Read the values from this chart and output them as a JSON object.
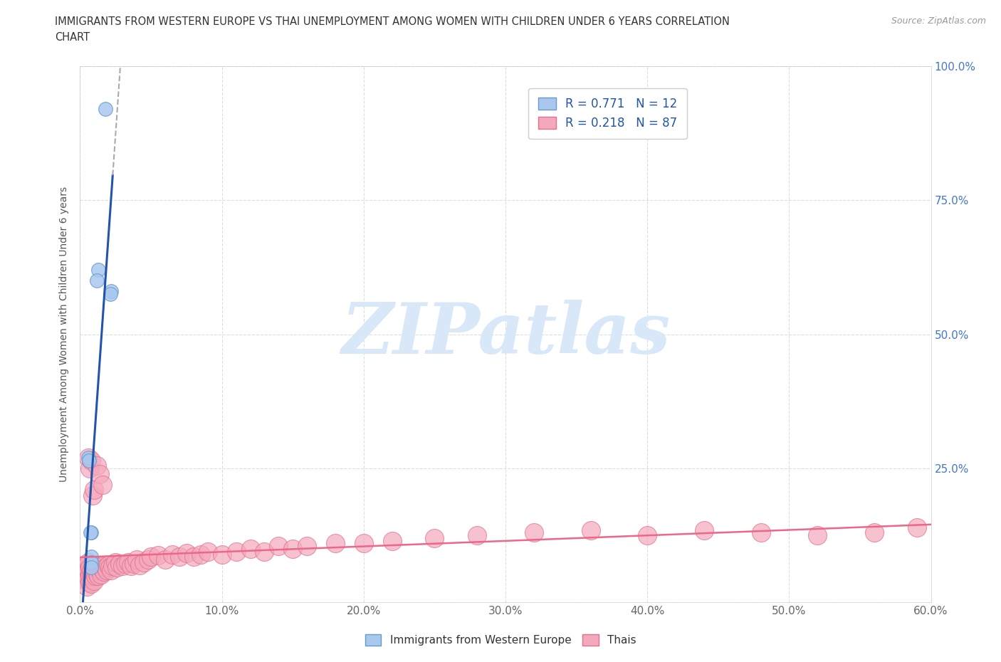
{
  "title_line1": "IMMIGRANTS FROM WESTERN EUROPE VS THAI UNEMPLOYMENT AMONG WOMEN WITH CHILDREN UNDER 6 YEARS CORRELATION",
  "title_line2": "CHART",
  "source": "Source: ZipAtlas.com",
  "xlim": [
    0,
    0.6
  ],
  "ylim": [
    0,
    1.0
  ],
  "xticks": [
    0.0,
    0.1,
    0.2,
    0.3,
    0.4,
    0.5,
    0.6
  ],
  "xtick_labels": [
    "0.0%",
    "10.0%",
    "20.0%",
    "30.0%",
    "40.0%",
    "50.0%",
    "60.0%"
  ],
  "yticks": [
    0.0,
    0.25,
    0.5,
    0.75,
    1.0
  ],
  "ytick_labels": [
    "",
    "25.0%",
    "50.0%",
    "75.0%",
    "100.0%"
  ],
  "blue_color": "#A8C8EE",
  "blue_edge": "#6699CC",
  "pink_color": "#F4A8BC",
  "pink_edge": "#E07090",
  "trendline_blue_color": "#2255AA",
  "trendline_pink_color": "#EE6688",
  "grid_color": "#DDDDDD",
  "grid_style": "--",
  "watermark_text": "ZIPatlas",
  "watermark_color": "#D8E8F8",
  "R1": "0.771",
  "N1": "12",
  "R2": "0.218",
  "N2": "87",
  "legend_text_color": "#2255AA",
  "title_color": "#333333",
  "source_color": "#999999",
  "ylabel": "Unemployment Among Women with Children Under 6 years",
  "bottom_legend": [
    "Immigrants from Western Europe",
    "Thais"
  ],
  "blue_x": [
    0.018,
    0.013,
    0.012,
    0.006,
    0.0062,
    0.022,
    0.0215,
    0.008,
    0.0075,
    0.008,
    0.0078,
    0.0076
  ],
  "blue_y": [
    0.92,
    0.62,
    0.6,
    0.27,
    0.265,
    0.58,
    0.575,
    0.13,
    0.13,
    0.085,
    0.075,
    0.065
  ],
  "pink_x": [
    0.004,
    0.004,
    0.005,
    0.005,
    0.005,
    0.005,
    0.005,
    0.006,
    0.006,
    0.006,
    0.007,
    0.007,
    0.007,
    0.008,
    0.008,
    0.008,
    0.009,
    0.009,
    0.01,
    0.01,
    0.01,
    0.011,
    0.011,
    0.012,
    0.012,
    0.013,
    0.013,
    0.014,
    0.015,
    0.015,
    0.016,
    0.017,
    0.018,
    0.019,
    0.02,
    0.021,
    0.022,
    0.023,
    0.025,
    0.026,
    0.028,
    0.03,
    0.032,
    0.034,
    0.036,
    0.038,
    0.04,
    0.042,
    0.045,
    0.048,
    0.05,
    0.055,
    0.06,
    0.065,
    0.07,
    0.075,
    0.08,
    0.085,
    0.09,
    0.1,
    0.11,
    0.12,
    0.13,
    0.14,
    0.15,
    0.16,
    0.18,
    0.2,
    0.22,
    0.25,
    0.28,
    0.32,
    0.36,
    0.4,
    0.44,
    0.48,
    0.52,
    0.56,
    0.59,
    0.006,
    0.007,
    0.008,
    0.009,
    0.01,
    0.012,
    0.014,
    0.016
  ],
  "pink_y": [
    0.065,
    0.055,
    0.07,
    0.06,
    0.05,
    0.04,
    0.03,
    0.075,
    0.06,
    0.045,
    0.065,
    0.05,
    0.038,
    0.06,
    0.048,
    0.035,
    0.065,
    0.05,
    0.07,
    0.055,
    0.04,
    0.065,
    0.05,
    0.07,
    0.055,
    0.065,
    0.05,
    0.06,
    0.068,
    0.052,
    0.062,
    0.058,
    0.065,
    0.06,
    0.07,
    0.065,
    0.06,
    0.068,
    0.075,
    0.065,
    0.072,
    0.068,
    0.072,
    0.075,
    0.068,
    0.072,
    0.08,
    0.07,
    0.075,
    0.08,
    0.085,
    0.088,
    0.08,
    0.09,
    0.085,
    0.092,
    0.085,
    0.09,
    0.095,
    0.09,
    0.095,
    0.1,
    0.095,
    0.105,
    0.1,
    0.105,
    0.11,
    0.11,
    0.115,
    0.12,
    0.125,
    0.13,
    0.135,
    0.125,
    0.135,
    0.13,
    0.125,
    0.13,
    0.14,
    0.27,
    0.25,
    0.265,
    0.2,
    0.21,
    0.255,
    0.24,
    0.22
  ]
}
